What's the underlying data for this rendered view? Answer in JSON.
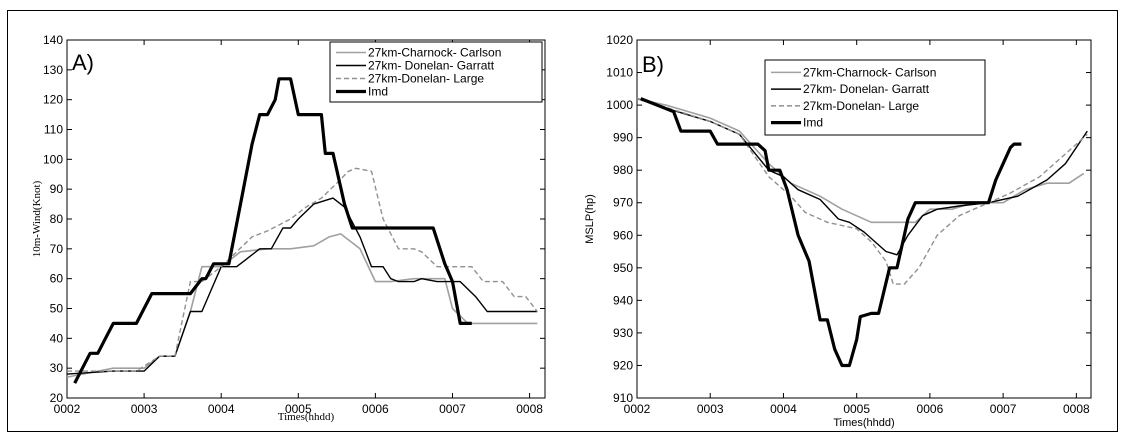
{
  "chart_data": [
    {
      "panel_label": "A)",
      "type": "line",
      "xlabel": "Times(hhdd)",
      "ylabel": "10m-Wind(Knot)",
      "xlim": [
        2,
        8.2
      ],
      "ylim": [
        20,
        140
      ],
      "xticks": [
        2,
        3,
        4,
        5,
        6,
        7,
        8
      ],
      "xtick_labels": [
        "0002",
        "0003",
        "0004",
        "0005",
        "0006",
        "0007",
        "0008"
      ],
      "yticks": [
        20,
        30,
        40,
        50,
        60,
        70,
        80,
        90,
        100,
        110,
        120,
        130,
        140
      ],
      "ytick_labels": [
        "20",
        "30",
        "40",
        "50",
        "60",
        "70",
        "80",
        "90",
        "100",
        "110",
        "120",
        "130",
        "140"
      ],
      "grid": false,
      "legend_position": "top-right",
      "series": [
        {
          "name": "27km-Charnock- Carlson",
          "color": "#a0a0a0",
          "width": 1.6,
          "dash": "",
          "points": [
            [
              2.0,
              27
            ],
            [
              2.6,
              30
            ],
            [
              3.0,
              30
            ],
            [
              3.2,
              34
            ],
            [
              3.4,
              34
            ],
            [
              3.6,
              49
            ],
            [
              3.75,
              64
            ],
            [
              4.0,
              64
            ],
            [
              4.25,
              69
            ],
            [
              4.6,
              70
            ],
            [
              4.9,
              70
            ],
            [
              5.2,
              71
            ],
            [
              5.4,
              74
            ],
            [
              5.55,
              75
            ],
            [
              5.8,
              70
            ],
            [
              6.0,
              59
            ],
            [
              6.2,
              59
            ],
            [
              6.5,
              60
            ],
            [
              6.9,
              60
            ],
            [
              7.0,
              50
            ],
            [
              7.2,
              45
            ],
            [
              8.1,
              45
            ]
          ]
        },
        {
          "name": "27km- Donelan- Garratt",
          "color": "#000000",
          "width": 1.4,
          "dash": "",
          "points": [
            [
              2.0,
              28
            ],
            [
              2.6,
              29
            ],
            [
              3.0,
              29
            ],
            [
              3.2,
              34
            ],
            [
              3.4,
              34
            ],
            [
              3.6,
              49
            ],
            [
              3.75,
              49
            ],
            [
              4.0,
              64
            ],
            [
              4.2,
              64
            ],
            [
              4.3,
              66
            ],
            [
              4.5,
              70
            ],
            [
              4.65,
              70
            ],
            [
              4.8,
              77
            ],
            [
              4.9,
              77
            ],
            [
              5.0,
              80
            ],
            [
              5.2,
              85
            ],
            [
              5.45,
              87
            ],
            [
              5.6,
              84
            ],
            [
              5.8,
              74
            ],
            [
              5.95,
              64
            ],
            [
              6.1,
              64
            ],
            [
              6.2,
              60
            ],
            [
              6.3,
              59
            ],
            [
              6.5,
              59
            ],
            [
              6.6,
              60
            ],
            [
              6.8,
              59
            ],
            [
              7.1,
              59
            ],
            [
              7.3,
              54
            ],
            [
              7.45,
              49
            ],
            [
              8.1,
              49
            ]
          ]
        },
        {
          "name": "27km-Donelan- Large",
          "color": "#909090",
          "width": 1.4,
          "dash": "5,3",
          "points": [
            [
              2.0,
              29
            ],
            [
              2.5,
              29
            ],
            [
              2.9,
              29
            ],
            [
              3.2,
              34
            ],
            [
              3.4,
              34
            ],
            [
              3.6,
              59
            ],
            [
              3.75,
              59
            ],
            [
              4.0,
              64
            ],
            [
              4.2,
              69
            ],
            [
              4.4,
              74
            ],
            [
              4.6,
              76
            ],
            [
              4.9,
              80
            ],
            [
              5.1,
              84
            ],
            [
              5.3,
              87
            ],
            [
              5.5,
              92
            ],
            [
              5.65,
              96
            ],
            [
              5.75,
              97
            ],
            [
              5.95,
              96
            ],
            [
              6.1,
              80
            ],
            [
              6.3,
              70
            ],
            [
              6.5,
              70
            ],
            [
              6.6,
              69
            ],
            [
              6.8,
              64
            ],
            [
              7.25,
              64
            ],
            [
              7.4,
              59
            ],
            [
              7.65,
              59
            ],
            [
              7.8,
              54
            ],
            [
              7.95,
              54
            ],
            [
              8.1,
              49
            ]
          ]
        },
        {
          "name": "Imd",
          "color": "#000000",
          "width": 3.2,
          "dash": "",
          "points": [
            [
              2.1,
              25
            ],
            [
              2.2,
              30
            ],
            [
              2.3,
              35
            ],
            [
              2.4,
              35
            ],
            [
              2.5,
              40
            ],
            [
              2.6,
              45
            ],
            [
              2.9,
              45
            ],
            [
              3.0,
              50
            ],
            [
              3.1,
              55
            ],
            [
              3.6,
              55
            ],
            [
              3.75,
              60
            ],
            [
              3.8,
              60
            ],
            [
              3.9,
              65
            ],
            [
              4.1,
              65
            ],
            [
              4.25,
              85
            ],
            [
              4.4,
              105
            ],
            [
              4.5,
              115
            ],
            [
              4.6,
              115
            ],
            [
              4.7,
              120
            ],
            [
              4.75,
              127
            ],
            [
              4.9,
              127
            ],
            [
              5.0,
              115
            ],
            [
              5.3,
              115
            ],
            [
              5.35,
              102
            ],
            [
              5.45,
              102
            ],
            [
              5.6,
              85
            ],
            [
              5.7,
              77
            ],
            [
              6.75,
              77
            ],
            [
              6.9,
              65
            ],
            [
              7.0,
              59
            ],
            [
              7.1,
              45
            ],
            [
              7.25,
              45
            ]
          ]
        }
      ]
    },
    {
      "panel_label": "B)",
      "type": "line",
      "xlabel": "Times(hhdd)",
      "ylabel": "MSLP(hp)",
      "xlim": [
        2,
        8.2
      ],
      "ylim": [
        910,
        1020
      ],
      "xticks": [
        2,
        3,
        4,
        5,
        6,
        7,
        8
      ],
      "xtick_labels": [
        "0002",
        "0003",
        "0004",
        "0005",
        "0006",
        "0007",
        "0008"
      ],
      "yticks": [
        910,
        920,
        930,
        940,
        950,
        960,
        970,
        980,
        990,
        1000,
        1010,
        1020
      ],
      "ytick_labels": [
        "910",
        "920",
        "930",
        "940",
        "950",
        "960",
        "970",
        "980",
        "990",
        "1000",
        "1010",
        "1020"
      ],
      "grid": false,
      "legend_position": "top-center",
      "series": [
        {
          "name": "27km-Charnock- Carlson",
          "color": "#a0a0a0",
          "width": 1.6,
          "dash": "",
          "points": [
            [
              2.0,
              1002
            ],
            [
              2.4,
              1000
            ],
            [
              3.0,
              996
            ],
            [
              3.4,
              992
            ],
            [
              3.8,
              982
            ],
            [
              4.1,
              976
            ],
            [
              4.5,
              972
            ],
            [
              4.8,
              968
            ],
            [
              5.2,
              964
            ],
            [
              5.6,
              964
            ],
            [
              5.8,
              964
            ],
            [
              6.0,
              968
            ],
            [
              6.3,
              968
            ],
            [
              6.6,
              970
            ],
            [
              7.0,
              970
            ],
            [
              7.3,
              974
            ],
            [
              7.6,
              976
            ],
            [
              7.9,
              976
            ],
            [
              8.1,
              979
            ]
          ]
        },
        {
          "name": "27km- Donelan- Garratt",
          "color": "#000000",
          "width": 1.4,
          "dash": "",
          "points": [
            [
              2.0,
              1002
            ],
            [
              2.4,
              999
            ],
            [
              3.0,
              995
            ],
            [
              3.4,
              991
            ],
            [
              3.8,
              980
            ],
            [
              4.0,
              978
            ],
            [
              4.2,
              974
            ],
            [
              4.5,
              971
            ],
            [
              4.75,
              965
            ],
            [
              4.9,
              964
            ],
            [
              5.1,
              961
            ],
            [
              5.4,
              955
            ],
            [
              5.55,
              954
            ],
            [
              5.7,
              960
            ],
            [
              5.9,
              966
            ],
            [
              6.1,
              968
            ],
            [
              6.4,
              969
            ],
            [
              6.8,
              970
            ],
            [
              7.2,
              972
            ],
            [
              7.6,
              977
            ],
            [
              7.85,
              982
            ],
            [
              8.15,
              992
            ]
          ]
        },
        {
          "name": "27km-Donelan- Large",
          "color": "#909090",
          "width": 1.4,
          "dash": "5,3",
          "points": [
            [
              2.0,
              1002
            ],
            [
              2.3,
              1000
            ],
            [
              3.0,
              995
            ],
            [
              3.4,
              991
            ],
            [
              3.8,
              978
            ],
            [
              4.1,
              972
            ],
            [
              4.3,
              967
            ],
            [
              4.6,
              964
            ],
            [
              5.0,
              962
            ],
            [
              5.2,
              958
            ],
            [
              5.4,
              952
            ],
            [
              5.5,
              945
            ],
            [
              5.65,
              945
            ],
            [
              5.85,
              950
            ],
            [
              6.1,
              960
            ],
            [
              6.4,
              966
            ],
            [
              6.7,
              969
            ],
            [
              7.1,
              973
            ],
            [
              7.5,
              978
            ],
            [
              7.85,
              985
            ],
            [
              8.15,
              991
            ]
          ]
        },
        {
          "name": "Imd",
          "color": "#000000",
          "width": 3.2,
          "dash": "",
          "points": [
            [
              2.05,
              1002
            ],
            [
              2.5,
              998
            ],
            [
              2.6,
              992
            ],
            [
              3.0,
              992
            ],
            [
              3.1,
              988
            ],
            [
              3.65,
              988
            ],
            [
              3.75,
              986
            ],
            [
              3.8,
              980
            ],
            [
              3.95,
              980
            ],
            [
              4.05,
              974
            ],
            [
              4.2,
              960
            ],
            [
              4.35,
              952
            ],
            [
              4.45,
              940
            ],
            [
              4.5,
              934
            ],
            [
              4.6,
              934
            ],
            [
              4.7,
              925
            ],
            [
              4.8,
              920
            ],
            [
              4.9,
              920
            ],
            [
              5.0,
              928
            ],
            [
              5.05,
              935
            ],
            [
              5.2,
              936
            ],
            [
              5.3,
              936
            ],
            [
              5.45,
              950
            ],
            [
              5.55,
              950
            ],
            [
              5.65,
              960
            ],
            [
              5.7,
              965
            ],
            [
              5.8,
              970
            ],
            [
              6.8,
              970
            ],
            [
              6.9,
              977
            ],
            [
              7.0,
              982
            ],
            [
              7.1,
              987
            ],
            [
              7.15,
              988
            ],
            [
              7.25,
              988
            ]
          ]
        }
      ]
    }
  ]
}
